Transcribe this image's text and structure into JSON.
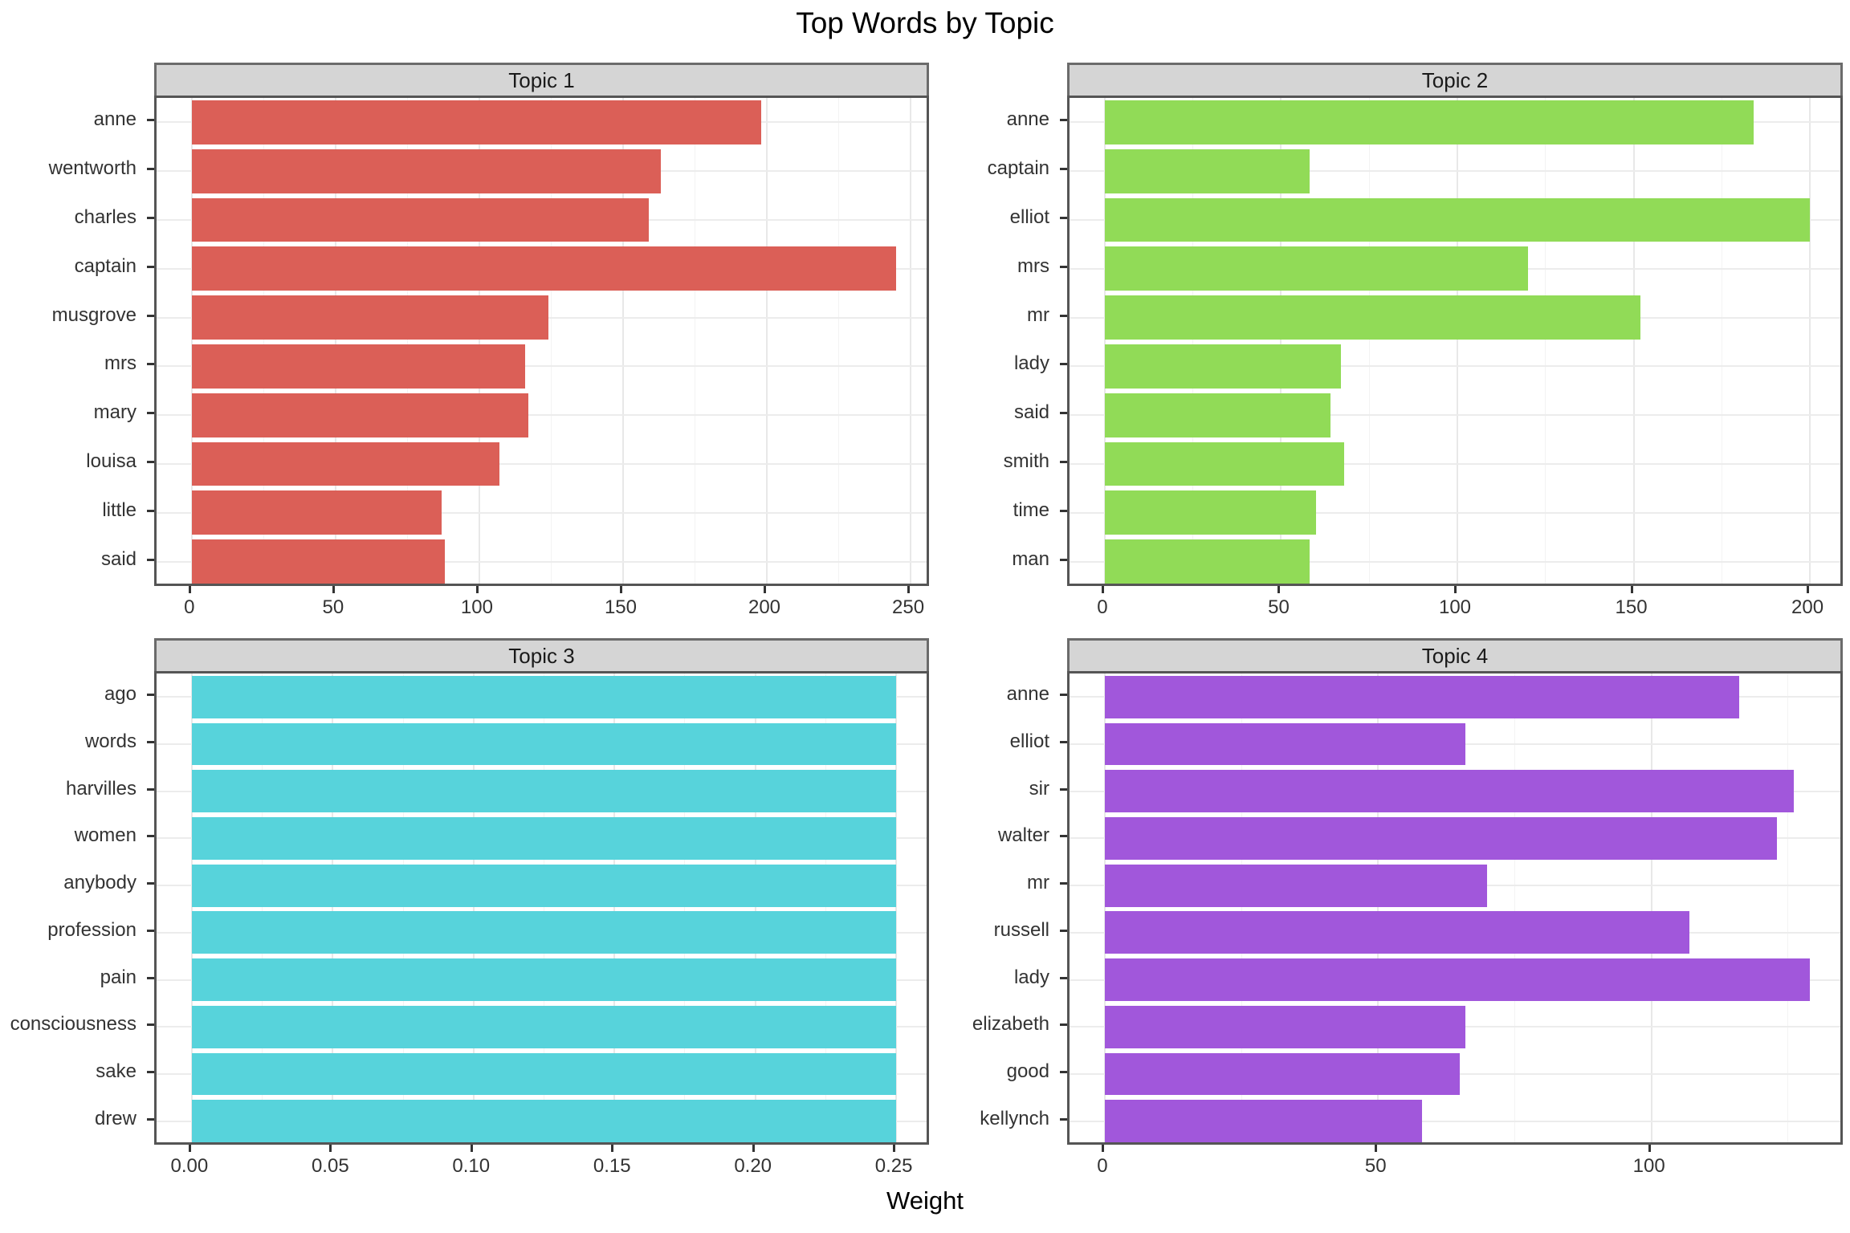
{
  "figure": {
    "title": "Top Words by Topic",
    "x_axis_label": "Weight"
  },
  "theme": {
    "strip_background": "#d5d5d5",
    "strip_border": "#6b6b6b",
    "panel_border": "#555555",
    "grid_major": "#e8e8e8",
    "grid_minor": "#f3f3f3",
    "axis_text_color": "#333333",
    "bar_palette": [
      "#db5f57",
      "#91db57",
      "#57d3db",
      "#a157db"
    ]
  },
  "chart_data": [
    {
      "type": "bar",
      "orientation": "horizontal",
      "facet_label": "Topic 1",
      "color": "#db5f57",
      "categories": [
        "anne",
        "wentworth",
        "charles",
        "captain",
        "musgrove",
        "mrs",
        "mary",
        "louisa",
        "little",
        "said"
      ],
      "values": [
        198,
        163,
        159,
        245,
        124,
        116,
        117,
        107,
        87,
        88
      ],
      "xlim": [
        -12.25,
        257.25
      ],
      "x_ticks": {
        "values": [
          0,
          50,
          100,
          150,
          200,
          250
        ],
        "labels": [
          "0",
          "50",
          "100",
          "150",
          "200",
          "250"
        ]
      },
      "x_minor_ticks": [
        25,
        75,
        125,
        175,
        225
      ],
      "grid": true,
      "legend": "none"
    },
    {
      "type": "bar",
      "orientation": "horizontal",
      "facet_label": "Topic 2",
      "color": "#91db57",
      "categories": [
        "anne",
        "captain",
        "elliot",
        "mrs",
        "mr",
        "lady",
        "said",
        "smith",
        "time",
        "man"
      ],
      "values": [
        184,
        58,
        200,
        120,
        152,
        67,
        64,
        68,
        60,
        58
      ],
      "xlim": [
        -10,
        210
      ],
      "x_ticks": {
        "values": [
          0,
          50,
          100,
          150,
          200
        ],
        "labels": [
          "0",
          "50",
          "100",
          "150",
          "200"
        ]
      },
      "x_minor_ticks": [
        25,
        75,
        125,
        175
      ],
      "grid": true,
      "legend": "none"
    },
    {
      "type": "bar",
      "orientation": "horizontal",
      "facet_label": "Topic 3",
      "color": "#57d3db",
      "categories": [
        "ago",
        "words",
        "harvilles",
        "women",
        "anybody",
        "profession",
        "pain",
        "consciousness",
        "sake",
        "drew"
      ],
      "values": [
        0.25,
        0.25,
        0.25,
        0.25,
        0.25,
        0.25,
        0.25,
        0.25,
        0.25,
        0.25
      ],
      "xlim": [
        -0.0125,
        0.2625
      ],
      "x_ticks": {
        "values": [
          0,
          0.05,
          0.1,
          0.15,
          0.2,
          0.25
        ],
        "labels": [
          "0.00",
          "0.05",
          "0.10",
          "0.15",
          "0.20",
          "0.25"
        ]
      },
      "x_minor_ticks": [
        0.025,
        0.075,
        0.125,
        0.175,
        0.225
      ],
      "grid": true,
      "legend": "none"
    },
    {
      "type": "bar",
      "orientation": "horizontal",
      "facet_label": "Topic 4",
      "color": "#a157db",
      "categories": [
        "anne",
        "elliot",
        "sir",
        "walter",
        "mr",
        "russell",
        "lady",
        "elizabeth",
        "good",
        "kellynch"
      ],
      "values": [
        116,
        66,
        126,
        123,
        70,
        107,
        129,
        66,
        65,
        58
      ],
      "xlim": [
        -6.45,
        135.45
      ],
      "x_ticks": {
        "values": [
          0,
          50,
          100
        ],
        "labels": [
          "0",
          "50",
          "100"
        ]
      },
      "x_minor_ticks": [
        25,
        75,
        125
      ],
      "grid": true,
      "legend": "none"
    }
  ]
}
